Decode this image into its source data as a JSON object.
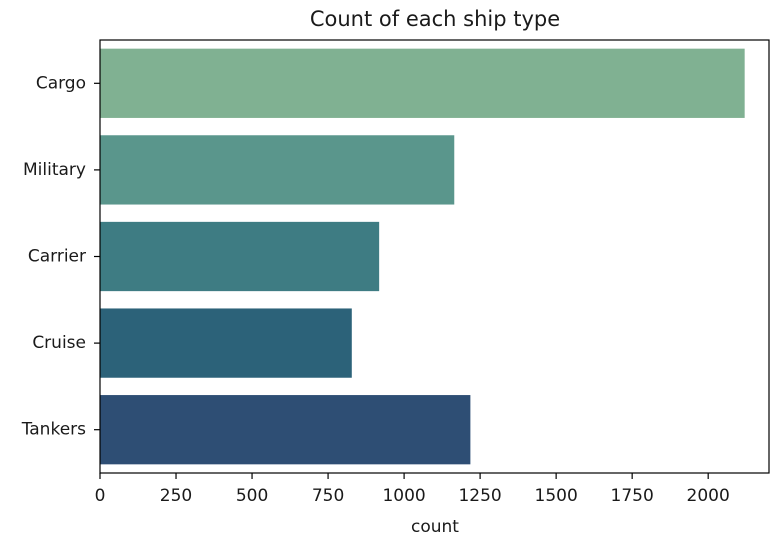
{
  "chart_data": {
    "type": "bar",
    "orientation": "horizontal",
    "title": "Count of each ship type",
    "xlabel": "count",
    "ylabel": "",
    "categories": [
      "Cargo",
      "Military",
      "Carrier",
      "Cruise",
      "Tankers"
    ],
    "values": [
      2120,
      1165,
      918,
      828,
      1218
    ],
    "colors": [
      "#80b192",
      "#5a968c",
      "#3e7c83",
      "#2c6279",
      "#2e4e74"
    ],
    "xlim": [
      0,
      2200
    ],
    "xticks": [
      0,
      250,
      500,
      750,
      1000,
      1250,
      1500,
      1750,
      2000
    ],
    "xtick_labels": [
      "0",
      "250",
      "500",
      "750",
      "1000",
      "1250",
      "1500",
      "1750",
      "2000"
    ],
    "grid": false,
    "legend": "none"
  }
}
